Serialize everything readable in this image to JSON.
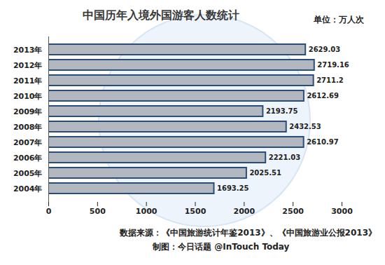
{
  "chart_data": {
    "type": "bar",
    "orientation": "horizontal",
    "title": "中国历年入境外国游客人数统计",
    "subtitle": "单位：万人次",
    "categories": [
      "2013年",
      "2012年",
      "2011年",
      "2010年",
      "2009年",
      "2008年",
      "2007年",
      "2006年",
      "2005年",
      "2004年"
    ],
    "values": [
      2629.03,
      2719.16,
      2711.2,
      2612.69,
      2193.75,
      2432.53,
      2610.97,
      2221.03,
      2025.51,
      1693.25
    ],
    "color": "#b3b7bf",
    "xlim": [
      0,
      3000
    ],
    "xticks": [
      0,
      500,
      1000,
      1500,
      2000,
      2500,
      3000
    ],
    "grid": false,
    "data_labels": true,
    "annotations": [
      "数据来源：《中国旅游统计年鉴2013》、《中国旅游业公报2013》",
      "制图：今日话题 @InTouch Today"
    ]
  }
}
